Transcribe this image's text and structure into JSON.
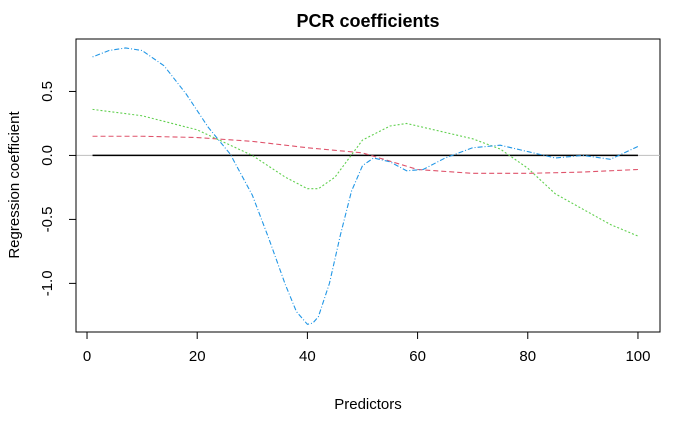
{
  "chart_data": {
    "type": "line",
    "title": "PCR coefficients",
    "xlabel": "Predictors",
    "ylabel": "Regression coefficient",
    "xlim": [
      -2,
      104
    ],
    "ylim": [
      -1.38,
      0.91
    ],
    "xticks": [
      0,
      20,
      40,
      60,
      80,
      100
    ],
    "yticks": [
      -1.0,
      -0.5,
      0.0,
      0.5
    ],
    "xtick_labels": [
      "0",
      "20",
      "40",
      "60",
      "80",
      "100"
    ],
    "ytick_labels": [
      "-1.0",
      "-0.5",
      "0.0",
      "0.5"
    ],
    "grid": false,
    "legend": "none",
    "zero_line": {
      "y": 0,
      "color": "#bebebe"
    },
    "series": [
      {
        "color": "#000000",
        "dash": "solid",
        "x": [
          1,
          100
        ],
        "y": [
          0.0,
          0.0
        ]
      },
      {
        "color": "#df536b",
        "dash": "dashed",
        "x": [
          1,
          10,
          20,
          30,
          40,
          45,
          50,
          60,
          70,
          80,
          90,
          100
        ],
        "y": [
          0.15,
          0.15,
          0.14,
          0.11,
          0.06,
          0.04,
          0.02,
          -0.11,
          -0.14,
          -0.14,
          -0.13,
          -0.11
        ]
      },
      {
        "color": "#61d04f",
        "dash": "dotted",
        "x": [
          1,
          10,
          20,
          30,
          36,
          40,
          42,
          45,
          50,
          55,
          58,
          60,
          65,
          70,
          75,
          80,
          85,
          90,
          95,
          100
        ],
        "y": [
          0.36,
          0.31,
          0.2,
          0.0,
          -0.17,
          -0.26,
          -0.26,
          -0.17,
          0.12,
          0.23,
          0.25,
          0.23,
          0.18,
          0.13,
          0.05,
          -0.1,
          -0.3,
          -0.42,
          -0.54,
          -0.63
        ]
      },
      {
        "color": "#2297e6",
        "dash": "dotdash",
        "x": [
          1,
          4,
          7,
          10,
          14,
          18,
          22,
          26,
          30,
          33,
          36,
          38,
          40,
          41,
          42,
          44,
          46,
          48,
          50,
          52,
          55,
          58,
          61,
          65,
          70,
          75,
          80,
          85,
          90,
          95,
          100
        ],
        "y": [
          0.77,
          0.82,
          0.84,
          0.82,
          0.7,
          0.48,
          0.22,
          0.01,
          -0.31,
          -0.65,
          -1.01,
          -1.22,
          -1.32,
          -1.31,
          -1.26,
          -1.0,
          -0.62,
          -0.28,
          -0.08,
          -0.02,
          -0.05,
          -0.12,
          -0.11,
          -0.02,
          0.06,
          0.08,
          0.03,
          -0.02,
          0.0,
          -0.03,
          0.07
        ]
      }
    ]
  }
}
